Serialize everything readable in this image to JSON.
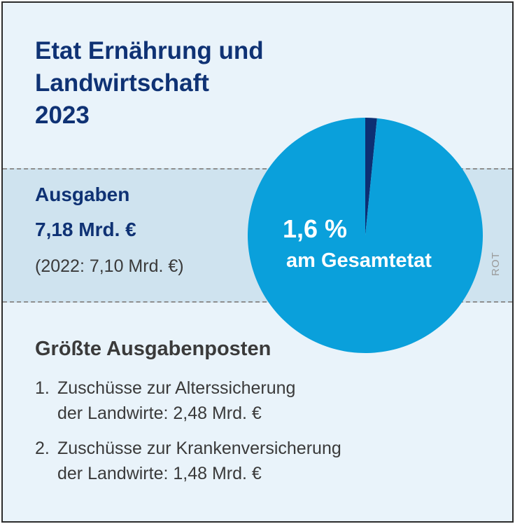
{
  "title_lines": [
    "Etat Ernährung und",
    "Landwirtschaft",
    "2023"
  ],
  "ausgaben": {
    "label": "Ausgaben",
    "value": "7,18 Mrd. €",
    "previous": "(2022: 7,10 Mrd. €)"
  },
  "credit": "ROT",
  "posten": {
    "title": "Größte Ausgabenposten",
    "items": [
      {
        "number": "1.",
        "line1": "Zuschüsse zur Alterssicherung",
        "line2": "der Landwirte: 2,48 Mrd. €"
      },
      {
        "number": "2.",
        "line1": "Zuschüsse zur Krankenversicherung",
        "line2": "der Landwirte: 1,48 Mrd. €"
      }
    ]
  },
  "chart_data": {
    "type": "pie",
    "slices": [
      {
        "value": 1.6
      },
      {
        "value": 98.4
      }
    ],
    "colors": [
      "#0d2f73",
      "#0aa0db"
    ],
    "label": "1,6 %",
    "caption": "am Gesamtetat"
  }
}
